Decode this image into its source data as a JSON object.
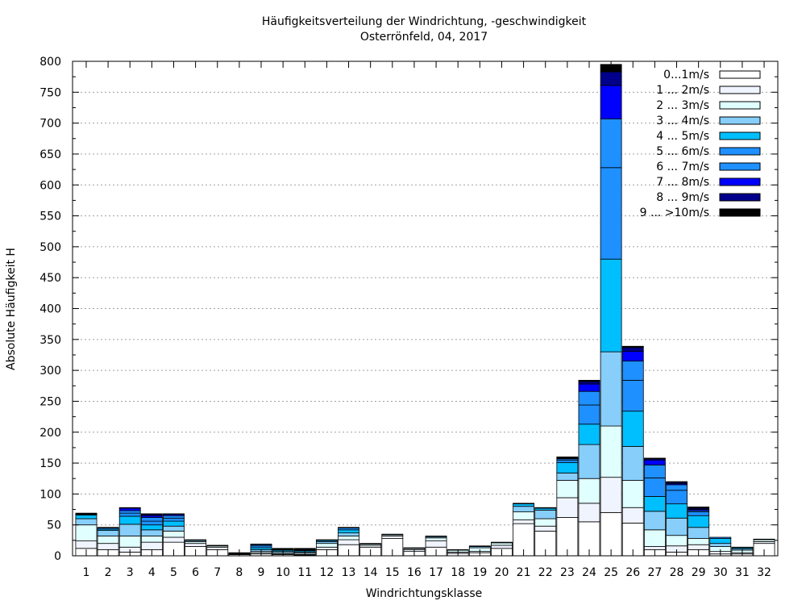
{
  "chart_data": {
    "type": "bar",
    "stacked": true,
    "title": "Häufigkeitsverteilung der Windrichtung, -geschwindigkeit",
    "subtitle": "Osterrönfeld, 04, 2017",
    "xlabel": "Windrichtungsklasse",
    "ylabel": "Absolute Häufigkeit H",
    "ylim": [
      0,
      800
    ],
    "yticks": [
      0,
      50,
      100,
      150,
      200,
      250,
      300,
      350,
      400,
      450,
      500,
      550,
      600,
      650,
      700,
      750,
      800
    ],
    "grid": true,
    "legend_position": "top-right",
    "categories": [
      "1",
      "2",
      "3",
      "4",
      "5",
      "6",
      "7",
      "8",
      "9",
      "10",
      "11",
      "12",
      "13",
      "14",
      "15",
      "16",
      "17",
      "18",
      "19",
      "20",
      "21",
      "22",
      "23",
      "24",
      "25",
      "26",
      "27",
      "28",
      "29",
      "30",
      "31",
      "32"
    ],
    "series": [
      {
        "name": "0...1m/s",
        "color": "#ffffff",
        "values": [
          12,
          10,
          6,
          10,
          22,
          15,
          10,
          2,
          3,
          2,
          1,
          10,
          18,
          14,
          28,
          7,
          14,
          4,
          5,
          12,
          52,
          40,
          62,
          55,
          70,
          53,
          10,
          6,
          10,
          3,
          3,
          20
        ]
      },
      {
        "name": "1 ... 2m/s",
        "color": "#f0f4ff",
        "values": [
          12,
          10,
          8,
          12,
          8,
          5,
          4,
          1,
          2,
          1,
          1,
          4,
          8,
          3,
          4,
          3,
          10,
          2,
          2,
          5,
          6,
          8,
          32,
          30,
          57,
          25,
          5,
          10,
          8,
          4,
          2,
          3
        ]
      },
      {
        "name": "2 ... 3m/s",
        "color": "#e0ffff",
        "values": [
          26,
          12,
          18,
          10,
          10,
          3,
          2,
          1,
          2,
          2,
          2,
          6,
          6,
          2,
          2,
          2,
          5,
          3,
          6,
          4,
          13,
          12,
          28,
          40,
          83,
          44,
          27,
          17,
          10,
          8,
          4,
          3
        ]
      },
      {
        "name": "3 ... 4m/s",
        "color": "#87cefa",
        "values": [
          10,
          9,
          19,
          10,
          8,
          2,
          1,
          1,
          3,
          2,
          2,
          3,
          5,
          1,
          1,
          1,
          2,
          1,
          2,
          1,
          9,
          14,
          12,
          55,
          120,
          55,
          30,
          28,
          18,
          5,
          2,
          1
        ]
      },
      {
        "name": "4 ... 5m/s",
        "color": "#00bfff",
        "values": [
          6,
          2,
          13,
          8,
          8,
          1,
          0,
          0,
          3,
          2,
          2,
          2,
          5,
          0,
          0,
          0,
          1,
          0,
          1,
          0,
          4,
          3,
          17,
          33,
          150,
          57,
          24,
          23,
          19,
          8,
          2,
          0
        ]
      },
      {
        "name": "5 ... 6m/s",
        "color": "#1e90ff",
        "values": [
          1,
          2,
          5,
          6,
          5,
          0,
          0,
          0,
          3,
          1,
          1,
          1,
          3,
          0,
          0,
          0,
          0,
          0,
          0,
          0,
          1,
          1,
          4,
          31,
          148,
          50,
          30,
          22,
          6,
          2,
          1,
          0
        ]
      },
      {
        "name": "6 ... 7m/s",
        "color": "#1e90ff",
        "values": [
          1,
          1,
          4,
          6,
          4,
          0,
          0,
          0,
          2,
          1,
          1,
          0,
          1,
          0,
          0,
          0,
          0,
          0,
          0,
          0,
          0,
          0,
          2,
          22,
          79,
          31,
          21,
          9,
          2,
          0,
          0,
          0
        ]
      },
      {
        "name": "7 ... 8m/s",
        "color": "#0000ff",
        "values": [
          1,
          0,
          4,
          3,
          2,
          0,
          0,
          0,
          1,
          1,
          1,
          0,
          0,
          0,
          0,
          0,
          0,
          0,
          0,
          0,
          0,
          0,
          1,
          12,
          54,
          16,
          8,
          2,
          2,
          0,
          0,
          0
        ]
      },
      {
        "name": "8 ... 9m/s",
        "color": "#00008b",
        "values": [
          0,
          0,
          1,
          2,
          1,
          0,
          0,
          0,
          0,
          0,
          1,
          0,
          0,
          0,
          0,
          0,
          0,
          0,
          0,
          0,
          0,
          0,
          1,
          4,
          22,
          6,
          2,
          2,
          2,
          0,
          0,
          0
        ]
      },
      {
        "name": "9 ... >10m/s",
        "color": "#000000",
        "values": [
          0,
          0,
          0,
          1,
          0,
          0,
          0,
          0,
          0,
          0,
          0,
          0,
          0,
          0,
          0,
          0,
          0,
          0,
          0,
          0,
          0,
          0,
          1,
          2,
          12,
          2,
          1,
          1,
          2,
          0,
          0,
          0
        ]
      }
    ]
  }
}
